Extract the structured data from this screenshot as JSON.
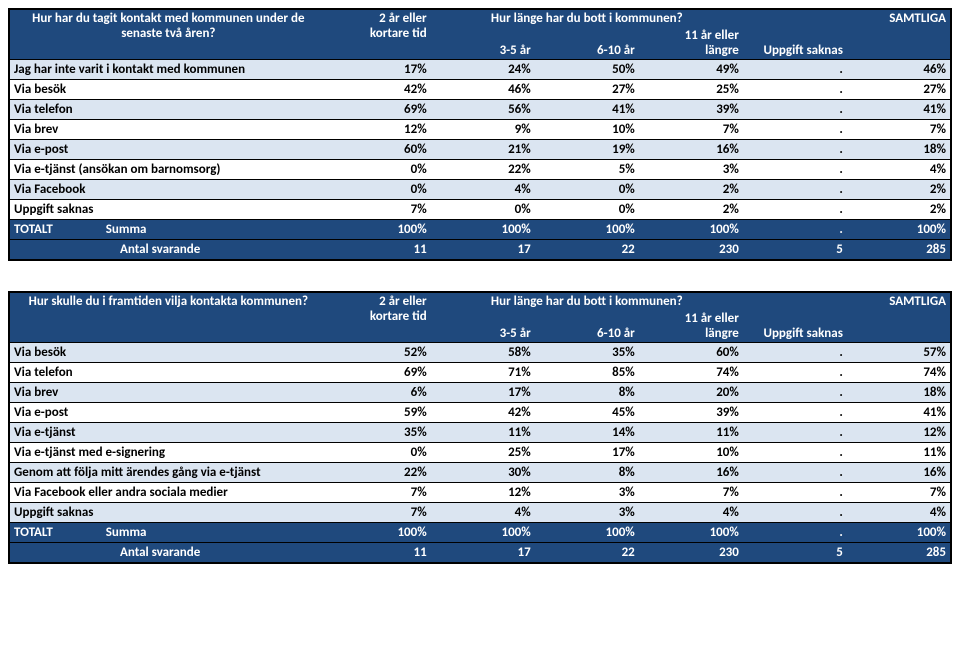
{
  "colors": {
    "header_bg": "#1f497d",
    "header_fg": "#ffffff",
    "band_odd": "#dbe5f1",
    "band_even": "#ffffff",
    "border": "#000000"
  },
  "table1": {
    "question": "Hur har du tagit kontakt med kommunen under de senaste två åren?",
    "top_header": "Hur länge har du bott i kommunen?",
    "samtliga": "SAMTLIGA",
    "cols": [
      "2 år eller kortare tid",
      "3-5 år",
      "6-10 år",
      "11 år eller längre",
      "Uppgift saknas"
    ],
    "cols_l1": [
      "2 år eller",
      "",
      "",
      "11 år eller",
      ""
    ],
    "cols_l2": [
      "kortare tid",
      "3-5 år",
      "6-10 år",
      "längre",
      "Uppgift saknas"
    ],
    "rows": [
      {
        "label": "Jag har inte varit i kontakt med kommunen",
        "v": [
          "17%",
          "24%",
          "50%",
          "49%",
          "."
        ],
        "t": "46%"
      },
      {
        "label": "Via besök",
        "v": [
          "42%",
          "46%",
          "27%",
          "25%",
          "."
        ],
        "t": "27%"
      },
      {
        "label": "Via telefon",
        "v": [
          "69%",
          "56%",
          "41%",
          "39%",
          "."
        ],
        "t": "41%"
      },
      {
        "label": "Via brev",
        "v": [
          "12%",
          "9%",
          "10%",
          "7%",
          "."
        ],
        "t": "7%"
      },
      {
        "label": "Via e-post",
        "v": [
          "60%",
          "21%",
          "19%",
          "16%",
          "."
        ],
        "t": "18%"
      },
      {
        "label": "Via e-tjänst (ansökan om barnomsorg)",
        "v": [
          "0%",
          "22%",
          "5%",
          "3%",
          "."
        ],
        "t": "4%"
      },
      {
        "label": "Via Facebook",
        "v": [
          "0%",
          "4%",
          "0%",
          "2%",
          "."
        ],
        "t": "2%"
      },
      {
        "label": "Uppgift saknas",
        "v": [
          "7%",
          "0%",
          "0%",
          "2%",
          "."
        ],
        "t": "2%"
      }
    ],
    "total_label": "TOTALT",
    "summa_label": "Summa",
    "summa": [
      "100%",
      "100%",
      "100%",
      "100%",
      "."
    ],
    "summa_t": "100%",
    "antal_label": "Antal svarande",
    "antal": [
      "11",
      "17",
      "22",
      "230",
      "5"
    ],
    "antal_t": "285"
  },
  "table2": {
    "question": "Hur skulle du i framtiden vilja kontakta kommunen?",
    "top_header": "Hur länge har du bott i kommunen?",
    "samtliga": "SAMTLIGA",
    "cols_l1": [
      "2 år eller",
      "",
      "",
      "11 år eller",
      ""
    ],
    "cols_l2": [
      "kortare tid",
      "3-5 år",
      "6-10 år",
      "längre",
      "Uppgift saknas"
    ],
    "rows": [
      {
        "label": "Via besök",
        "v": [
          "52%",
          "58%",
          "35%",
          "60%",
          "."
        ],
        "t": "57%"
      },
      {
        "label": "Via telefon",
        "v": [
          "69%",
          "71%",
          "85%",
          "74%",
          "."
        ],
        "t": "74%"
      },
      {
        "label": "Via brev",
        "v": [
          "6%",
          "17%",
          "8%",
          "20%",
          "."
        ],
        "t": "18%"
      },
      {
        "label": "Via e-post",
        "v": [
          "59%",
          "42%",
          "45%",
          "39%",
          "."
        ],
        "t": "41%"
      },
      {
        "label": "Via e-tjänst",
        "v": [
          "35%",
          "11%",
          "14%",
          "11%",
          "."
        ],
        "t": "12%"
      },
      {
        "label": "Via e-tjänst med e-signering",
        "v": [
          "0%",
          "25%",
          "17%",
          "10%",
          "."
        ],
        "t": "11%"
      },
      {
        "label": "Genom att följa mitt ärendes gång via e-tjänst",
        "v": [
          "22%",
          "30%",
          "8%",
          "16%",
          "."
        ],
        "t": "16%"
      },
      {
        "label": "Via Facebook eller andra sociala medier",
        "v": [
          "7%",
          "12%",
          "3%",
          "7%",
          "."
        ],
        "t": "7%"
      },
      {
        "label": "Uppgift saknas",
        "v": [
          "7%",
          "4%",
          "3%",
          "4%",
          "."
        ],
        "t": "4%"
      }
    ],
    "total_label": "TOTALT",
    "summa_label": "Summa",
    "summa": [
      "100%",
      "100%",
      "100%",
      "100%",
      "."
    ],
    "summa_t": "100%",
    "antal_label": "Antal svarande",
    "antal": [
      "11",
      "17",
      "22",
      "230",
      "5"
    ],
    "antal_t": "285"
  }
}
